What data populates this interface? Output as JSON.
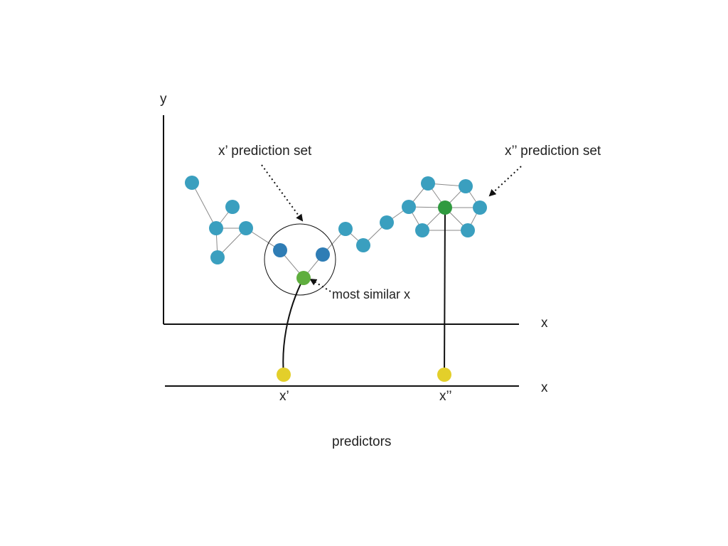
{
  "labels": {
    "y_axis": "y",
    "x_axis_top": "x",
    "x_axis_bottom": "x",
    "x_prime_set": "x’ prediction set",
    "x_dprime_set": "x’’ prediction set",
    "most_similar": "most similar x",
    "x_prime": "x’",
    "x_dprime": "x’’",
    "predictors": "predictors"
  },
  "colors": {
    "node": "#3a9fbf",
    "neighbor": "#2f7db5",
    "match": "#5fae3e",
    "match_dark": "#2f9a3f",
    "predictor": "#e3cf2a",
    "axis": "#111111",
    "edge": "#8a8a8a"
  }
}
